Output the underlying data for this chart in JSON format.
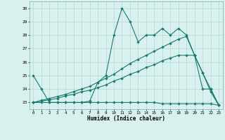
{
  "xlabel": "Humidex (Indice chaleur)",
  "x": [
    0,
    1,
    2,
    3,
    4,
    5,
    6,
    7,
    8,
    9,
    10,
    11,
    12,
    13,
    14,
    15,
    16,
    17,
    18,
    19,
    20,
    21,
    22,
    23
  ],
  "line1": [
    25,
    24,
    23,
    23,
    23,
    23,
    23,
    23.1,
    24.5,
    25,
    28,
    30,
    29,
    27.5,
    28,
    28,
    28.5,
    28,
    28.5,
    28,
    26.5,
    24,
    24,
    22.8
  ],
  "line2": [
    23,
    23,
    23,
    23,
    23,
    23,
    23,
    23,
    23,
    23,
    23,
    23,
    23,
    23,
    23,
    23,
    22.9,
    22.9,
    22.9,
    22.9,
    22.9,
    22.9,
    22.9,
    22.8
  ],
  "line3": [
    23.0,
    23.1,
    23.2,
    23.3,
    23.5,
    23.6,
    23.8,
    23.9,
    24.1,
    24.3,
    24.6,
    24.8,
    25.1,
    25.3,
    25.6,
    25.8,
    26.1,
    26.3,
    26.5,
    26.5,
    26.5,
    25.2,
    23.8,
    22.8
  ],
  "line4": [
    23.0,
    23.15,
    23.3,
    23.45,
    23.6,
    23.8,
    24.0,
    24.2,
    24.5,
    24.8,
    25.1,
    25.5,
    25.9,
    26.2,
    26.5,
    26.8,
    27.1,
    27.4,
    27.7,
    27.9,
    26.5,
    25.2,
    24.0,
    22.8
  ],
  "color": "#1a7a6e",
  "bg_color": "#d8f0ee",
  "grid_color": "#b8dbd8",
  "ylim": [
    22.5,
    30.5
  ],
  "yticks": [
    23,
    24,
    25,
    26,
    27,
    28,
    29,
    30
  ],
  "xlim": [
    -0.5,
    23.5
  ]
}
